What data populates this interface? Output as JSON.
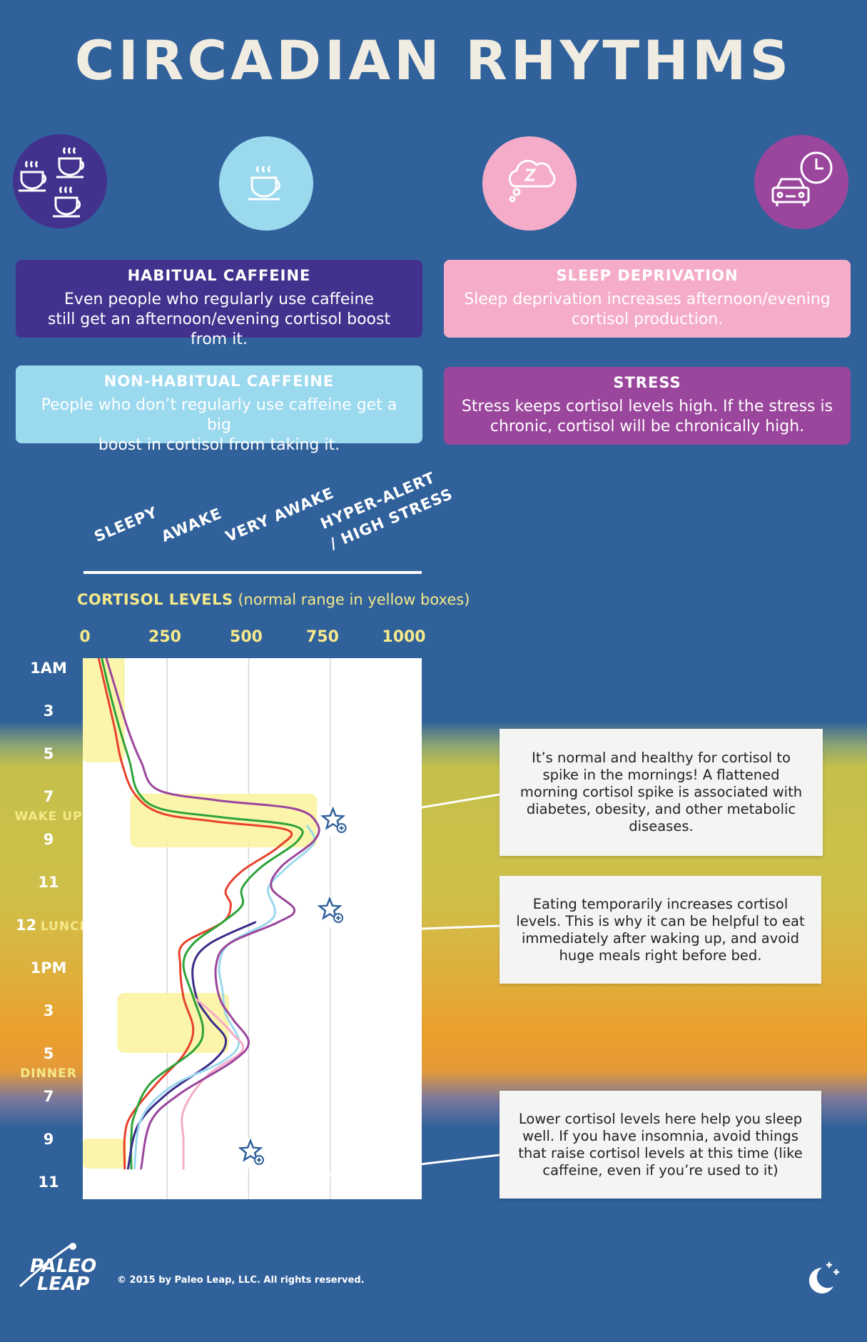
{
  "title": "CIRCADIAN RHYTHMS",
  "icons": [
    {
      "name": "multiple-coffee-cups-icon",
      "color": "#43318e"
    },
    {
      "name": "coffee-cup-icon",
      "color": "#9bd9ee"
    },
    {
      "name": "sleep-bubble-icon",
      "color": "#f5acc8"
    },
    {
      "name": "commute-car-clock-icon",
      "color": "#9a469c"
    }
  ],
  "cards": {
    "habitual": {
      "title": "HABITUAL CAFFEINE",
      "lines": [
        "Even people who regularly use caffeine",
        "still get an afternoon/evening cortisol boost from it."
      ],
      "color": "#43318e"
    },
    "sleep": {
      "title": "SLEEP DEPRIVATION",
      "lines": [
        "Sleep deprivation increases afternoon/evening",
        "cortisol production."
      ],
      "color": "#f5acc8"
    },
    "nonhabitual": {
      "title": "NON-HABITUAL CAFFEINE",
      "lines": [
        "People who don’t regularly use caffeine get a big",
        "boost in cortisol from taking it."
      ],
      "color": "#9bd9ee"
    },
    "stress": {
      "title": "STRESS",
      "lines": [
        "Stress keeps cortisol levels high. If the stress is",
        "chronic, cortisol will be chronically high."
      ],
      "color": "#9a469c"
    }
  },
  "scale_labels": [
    "SLEEPY",
    "AWAKE",
    "VERY AWAKE",
    "HYPER-ALERT",
    "/ HIGH STRESS"
  ],
  "chart_data": {
    "type": "line",
    "title_bold": "CORTISOL LEVELS",
    "title_note": "(normal range in yellow boxes)",
    "x_ticks": [
      "0",
      "250",
      "500",
      "750",
      "1000"
    ],
    "xlim": [
      0,
      1000
    ],
    "grid": true,
    "y_ticks": [
      {
        "label": "1AM",
        "hour": 1
      },
      {
        "label": "3",
        "hour": 3
      },
      {
        "label": "5",
        "hour": 5
      },
      {
        "label": "7",
        "hour": 7,
        "sub": "WAKE UP"
      },
      {
        "label": "9",
        "hour": 9
      },
      {
        "label": "11",
        "hour": 11
      },
      {
        "label": "12",
        "hour": 12,
        "sub_inline": "LUNCH"
      },
      {
        "label": "1PM",
        "hour": 13
      },
      {
        "label": "3",
        "hour": 15
      },
      {
        "label": "5",
        "hour": 17,
        "sub": "DINNER"
      },
      {
        "label": "7",
        "hour": 19
      },
      {
        "label": "9",
        "hour": 21
      },
      {
        "label": "11",
        "hour": 23
      }
    ],
    "normal_ranges": [
      {
        "hour_from": 0,
        "hour_to": 5.2,
        "cortisol_from": 0,
        "cortisol_to": 120
      },
      {
        "hour_from": 7,
        "hour_to": 9.5,
        "cortisol_from": 150,
        "cortisol_to": 710
      },
      {
        "hour_from": 16.3,
        "hour_to": 19.1,
        "cortisol_from": 110,
        "cortisol_to": 440
      },
      {
        "hour_from": 23.1,
        "hour_to": 24.5,
        "cortisol_from": 0,
        "cortisol_to": 125
      }
    ],
    "series": [
      {
        "color": "#e8412b",
        "points": [
          [
            0,
            30
          ],
          [
            2,
            60
          ],
          [
            4,
            90
          ],
          [
            5.5,
            110
          ],
          [
            7,
            150
          ],
          [
            7.9,
            230
          ],
          [
            8.3,
            400
          ],
          [
            8.7,
            620
          ],
          [
            9.5,
            590
          ],
          [
            10.6,
            480
          ],
          [
            11.5,
            430
          ],
          [
            12.2,
            445
          ],
          [
            13,
            420
          ],
          [
            14,
            300
          ],
          [
            15,
            290
          ],
          [
            16.5,
            300
          ],
          [
            18,
            330
          ],
          [
            19.2,
            300
          ],
          [
            20.5,
            220
          ],
          [
            22,
            140
          ],
          [
            23,
            120
          ],
          [
            24.5,
            120
          ]
        ]
      },
      {
        "color": "#2da339",
        "points": [
          [
            0,
            40
          ],
          [
            2,
            70
          ],
          [
            4,
            105
          ],
          [
            5.5,
            135
          ],
          [
            6.9,
            160
          ],
          [
            7.7,
            230
          ],
          [
            8.1,
            420
          ],
          [
            8.5,
            640
          ],
          [
            9.2,
            650
          ],
          [
            10.4,
            540
          ],
          [
            11.4,
            480
          ],
          [
            12.2,
            480
          ],
          [
            13,
            420
          ],
          [
            14,
            330
          ],
          [
            15,
            300
          ],
          [
            16.5,
            330
          ],
          [
            18,
            360
          ],
          [
            19,
            330
          ],
          [
            20.5,
            200
          ],
          [
            22,
            150
          ],
          [
            23,
            140
          ],
          [
            24.5,
            140
          ]
        ]
      },
      {
        "color": "#3a2d8a",
        "points": [
          [
            13,
            520
          ],
          [
            14,
            380
          ],
          [
            15,
            330
          ],
          [
            16.5,
            340
          ],
          [
            17.5,
            380
          ],
          [
            18.5,
            430
          ],
          [
            19.5,
            390
          ],
          [
            21,
            250
          ],
          [
            22.5,
            160
          ],
          [
            24.5,
            130
          ]
        ]
      },
      {
        "color": "#9bd9ee",
        "points": [
          [
            8.5,
            680
          ],
          [
            9.3,
            700
          ],
          [
            10.4,
            620
          ],
          [
            11.4,
            560
          ],
          [
            12.4,
            580
          ],
          [
            13,
            560
          ],
          [
            14,
            440
          ],
          [
            15,
            410
          ],
          [
            16.2,
            420
          ],
          [
            17.3,
            430
          ],
          [
            18.6,
            470
          ],
          [
            19.5,
            420
          ],
          [
            20.7,
            260
          ],
          [
            22.2,
            170
          ],
          [
            24.5,
            150
          ]
        ]
      },
      {
        "color": "#f5acc8",
        "points": [
          [
            16.6,
            340
          ],
          [
            17.4,
            400
          ],
          [
            18.2,
            450
          ],
          [
            19,
            480
          ],
          [
            20.2,
            370
          ],
          [
            21.8,
            300
          ],
          [
            23.2,
            300
          ],
          [
            24.5,
            300
          ]
        ]
      },
      {
        "color": "#9a469c",
        "points": [
          [
            0,
            50
          ],
          [
            2,
            90
          ],
          [
            4,
            130
          ],
          [
            5.5,
            170
          ],
          [
            6.8,
            220
          ],
          [
            7.3,
            400
          ],
          [
            7.7,
            640
          ],
          [
            8.4,
            710
          ],
          [
            9.2,
            700
          ],
          [
            10.4,
            600
          ],
          [
            11.4,
            570
          ],
          [
            12.4,
            640
          ],
          [
            13,
            590
          ],
          [
            14,
            440
          ],
          [
            15,
            400
          ],
          [
            16.5,
            410
          ],
          [
            17.5,
            450
          ],
          [
            18.6,
            500
          ],
          [
            19.5,
            450
          ],
          [
            21,
            290
          ],
          [
            22.3,
            200
          ],
          [
            24.5,
            170
          ]
        ]
      }
    ],
    "markers": [
      {
        "hour": 8.3,
        "cortisol": 765
      },
      {
        "hour": 12.5,
        "cortisol": 755
      },
      {
        "hour": 23.8,
        "cortisol": 512
      }
    ]
  },
  "notes": [
    "It’s normal and healthy for cortisol to spike in the mornings! A flattened morning cortisol spike is associated with diabetes, obesity, and other metabolic diseases.",
    "Eating temporarily increases cortisol levels. This is why it can be helpful to eat immediately after waking up, and avoid huge meals right before bed.",
    "Lower cortisol levels here help you sleep well. If you have insomnia, avoid things that raise cortisol levels at this time (like caffeine, even if you’re used to it)"
  ],
  "footer": {
    "logo_top": "PALEO",
    "logo_bottom": "LEAP",
    "copyright": "© 2015 by Paleo Leap, LLC. All rights reserved.",
    "moon_icon": "moon-stars-icon"
  }
}
